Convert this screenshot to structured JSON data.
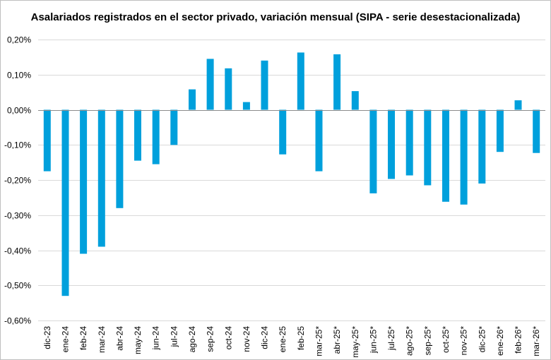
{
  "chart_data": {
    "type": "bar",
    "title": "Asalariados registrados en el sector privado, variación mensual (SIPA - serie desestacionalizada)",
    "xlabel": "",
    "ylabel": "",
    "ylim": [
      -0.6,
      0.2
    ],
    "y_ticks": [
      "0,20%",
      "0,10%",
      "0,00%",
      "-0,10%",
      "-0,20%",
      "-0,30%",
      "-0,40%",
      "-0,50%",
      "-0,60%"
    ],
    "y_tick_values": [
      0.2,
      0.1,
      0.0,
      -0.1,
      -0.2,
      -0.3,
      -0.4,
      -0.5,
      -0.6
    ],
    "grid": true,
    "bar_color": "#00a0dc",
    "categories": [
      "dic-23",
      "ene-24",
      "feb-24",
      "mar-24",
      "abr-24",
      "may-24",
      "jun-24",
      "jul-24",
      "ago-24",
      "sep-24",
      "oct-24",
      "nov-24",
      "dic-24",
      "ene-25",
      "feb-25",
      "mar-25*",
      "abr-25*",
      "may-25*",
      "jun-25*",
      "jul-25*",
      "ago-25*",
      "sep-25*",
      "oct-25*",
      "nov-25*",
      "dic-25*",
      "ene-26*",
      "feb-26*",
      "mar-26*"
    ],
    "values": [
      -0.175,
      -0.53,
      -0.41,
      -0.39,
      -0.28,
      -0.145,
      -0.155,
      -0.1,
      0.058,
      0.145,
      0.118,
      0.022,
      0.14,
      -0.127,
      0.163,
      -0.175,
      0.158,
      0.053,
      -0.238,
      -0.197,
      -0.187,
      -0.215,
      -0.262,
      -0.27,
      -0.21,
      -0.12,
      0.027,
      -0.123
    ]
  }
}
